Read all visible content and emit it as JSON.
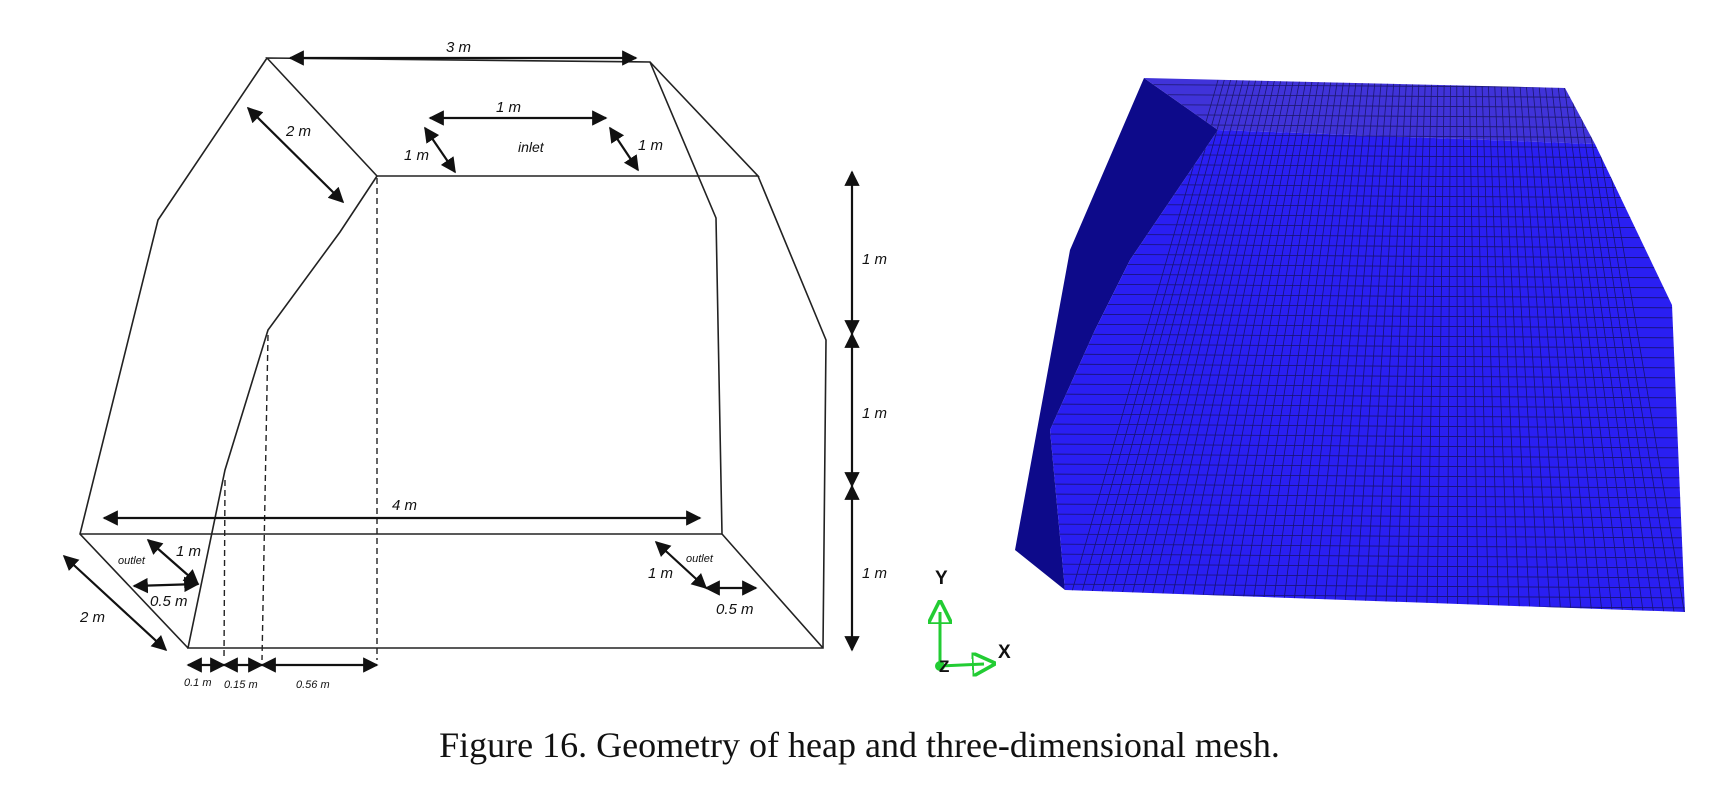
{
  "caption": "Figure 16. Geometry of heap and three-dimensional mesh.",
  "geometry": {
    "top_width": "3 m",
    "top_depth": "2 m",
    "inlet_width": "1 m",
    "inlet_left_depth": "1 m",
    "inlet_right_depth": "1 m",
    "inlet_label": "inlet",
    "base_width": "4 m",
    "height_upper": "1 m",
    "height_middle": "1 m",
    "height_lower": "1 m",
    "base_depth": "2 m",
    "outlet_left_label": "outlet",
    "outlet_left_depth": "1 m",
    "outlet_left_width": "0.5 m",
    "outlet_right_label": "outlet",
    "outlet_right_depth": "1 m",
    "outlet_right_width": "0.5 m",
    "offset_1": "0.1 m",
    "offset_2": "0.15 m",
    "offset_3": "0.56 m"
  },
  "axes": {
    "y_label": "Y",
    "x_label": "X",
    "z_label": "Z",
    "axis_color": "#22cc33"
  },
  "mesh": {
    "fill_color": "#2a1ff2",
    "side_color": "#0d0a8a",
    "top_color": "#4033d9",
    "grid_color": "#10104a"
  }
}
